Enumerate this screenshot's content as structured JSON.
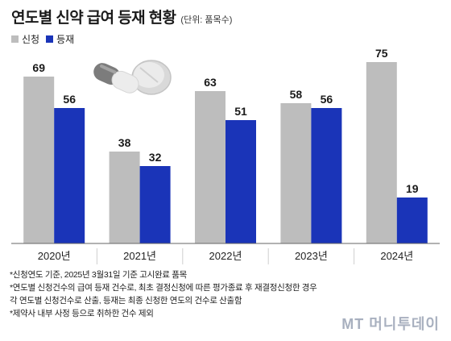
{
  "title": "연도별 신약 급여 등재 현황",
  "unit": "(단위: 품목수)",
  "legend": [
    {
      "label": "신청",
      "color": "#bdbdbd"
    },
    {
      "label": "등재",
      "color": "#1a34b8"
    }
  ],
  "chart_data": {
    "type": "bar",
    "categories": [
      "2020년",
      "2021년",
      "2022년",
      "2023년",
      "2024년"
    ],
    "series": [
      {
        "name": "신청",
        "values": [
          69,
          38,
          63,
          58,
          75
        ],
        "color": "#bdbdbd"
      },
      {
        "name": "등재",
        "values": [
          56,
          32,
          51,
          56,
          19
        ],
        "color": "#1a34b8"
      }
    ],
    "ylim": [
      0,
      80
    ],
    "grid": false,
    "legend_position": "top-left"
  },
  "notes": [
    "*신청연도 기준, 2025년 3월31일 기준 고시완료 품목",
    "*연도별 신청건수의 급여 등재 건수로, 최초 결정신청에 따른 평가종료 후 재결정신청한 경우",
    "각 연도별 신청건수로 산출, 등재는 최종 신청한 연도의 건수로 산출함",
    "*제약사 내부 사정 등으로 취하한 건수 제외"
  ],
  "watermark": "MT 머니투데이"
}
